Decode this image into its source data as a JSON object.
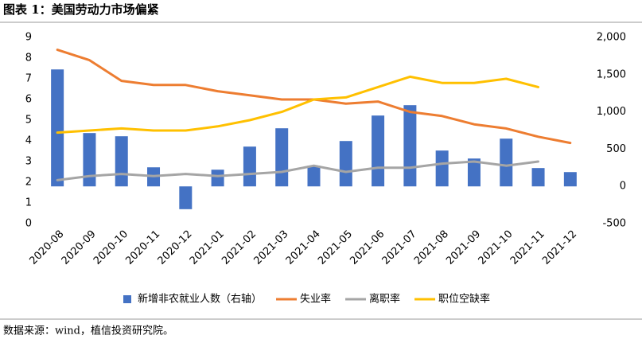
{
  "chart_data": {
    "type": "combo",
    "title": "图表 1：美国劳动力市场偏紧",
    "source": "数据来源：wind，植信投资研究院。",
    "categories": [
      "2020-08",
      "2020-09",
      "2020-10",
      "2020-11",
      "2020-12",
      "2021-01",
      "2021-02",
      "2021-03",
      "2021-04",
      "2021-05",
      "2021-06",
      "2021-07",
      "2021-08",
      "2021-09",
      "2021-10",
      "2021-11",
      "2021-12"
    ],
    "series": [
      {
        "name": "新增非农就业人数（右轴）",
        "type": "bar",
        "axis": "y2",
        "color": "#4472c4",
        "values": [
          1570,
          716,
          673,
          256,
          -306,
          224,
          534,
          780,
          278,
          609,
          951,
          1090,
          481,
          374,
          641,
          246,
          192
        ]
      },
      {
        "name": "失业率",
        "type": "line",
        "color": "#ed7d31",
        "values": [
          8.4,
          7.9,
          6.9,
          6.7,
          6.7,
          6.4,
          6.2,
          6.0,
          6.0,
          5.8,
          5.9,
          5.4,
          5.2,
          4.8,
          4.6,
          4.2,
          3.9
        ]
      },
      {
        "name": "离职率",
        "type": "line",
        "color": "#a5a5a5",
        "values": [
          2.1,
          2.3,
          2.4,
          2.3,
          2.4,
          2.3,
          2.4,
          2.5,
          2.8,
          2.5,
          2.7,
          2.7,
          2.9,
          3.0,
          2.8,
          3.0,
          null
        ]
      },
      {
        "name": "职位空缺率",
        "type": "line",
        "color": "#ffc000",
        "values": [
          4.4,
          4.5,
          4.6,
          4.5,
          4.5,
          4.7,
          5.0,
          5.4,
          6.0,
          6.1,
          6.6,
          7.1,
          6.8,
          6.8,
          7.0,
          6.6,
          null
        ]
      }
    ],
    "ylim": [
      0,
      9
    ],
    "yticks": [
      0,
      1,
      2,
      3,
      4,
      5,
      6,
      7,
      8,
      9
    ],
    "y2lim": [
      -500,
      2000
    ],
    "y2ticks": [
      -500,
      0,
      {
        "value": 500,
        "label": "500"
      },
      {
        "value": 1000,
        "label": "1,000"
      },
      {
        "value": 1500,
        "label": "1,500"
      },
      {
        "value": 2000,
        "label": "2,000"
      }
    ],
    "legend": "bottom"
  }
}
